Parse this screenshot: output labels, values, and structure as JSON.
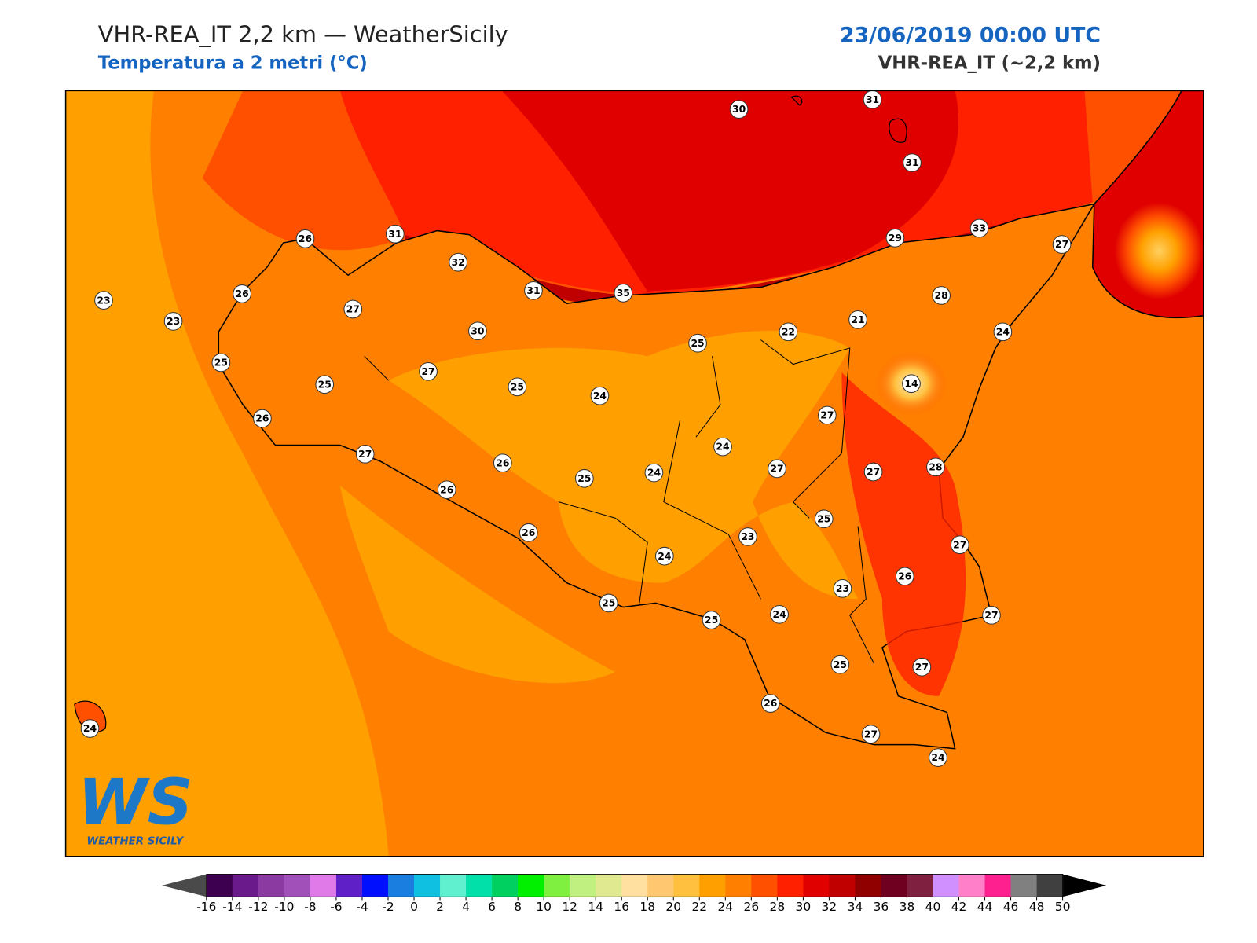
{
  "header": {
    "title": "VHR-REA_IT 2,2 km — WeatherSicily",
    "subtitle": "Temperatura a 2 metri (°C)",
    "date": "23/06/2019 00:00 UTC",
    "model": "VHR-REA_IT (~2,2 km)"
  },
  "stations": [
    30,
    31,
    31,
    26,
    31,
    32,
    31,
    35,
    29,
    33,
    27,
    23,
    26,
    27,
    23,
    30,
    28,
    25,
    22,
    21,
    24,
    25,
    25,
    27,
    25,
    24,
    14,
    26,
    27,
    27,
    26,
    24,
    24,
    25,
    27,
    27,
    28,
    26,
    25,
    23,
    26,
    24,
    27,
    26,
    23,
    25,
    25,
    24,
    27,
    25,
    27,
    26,
    27,
    24,
    24
  ],
  "logo": {
    "mark": "WS",
    "text": "WEATHER SICILY"
  },
  "colorbar": {
    "ticks": [
      -16,
      -14,
      -12,
      -10,
      -8,
      -6,
      -4,
      -2,
      0,
      2,
      4,
      6,
      8,
      10,
      12,
      14,
      16,
      18,
      20,
      22,
      24,
      26,
      28,
      30,
      32,
      34,
      36,
      38,
      40,
      42,
      44,
      46,
      48,
      50
    ],
    "colors": [
      "#3d0050",
      "#6a1a8a",
      "#8a3aa0",
      "#a050b8",
      "#e07ae8",
      "#6020c8",
      "#0010ff",
      "#1a7ee0",
      "#10c0e0",
      "#60f0d0",
      "#00e0a8",
      "#00d060",
      "#00f000",
      "#80f040",
      "#c0f080",
      "#e0e890",
      "#ffe0a0",
      "#ffc870",
      "#ffc040",
      "#ffa000",
      "#ff8000",
      "#ff5000",
      "#ff2000",
      "#e00000",
      "#c00000",
      "#900000",
      "#700020",
      "#802040",
      "#d090ff",
      "#ff80c8",
      "#ff2090",
      "#808080",
      "#404040"
    ],
    "under_color": "#4a4a4a",
    "over_color": "#000000"
  }
}
